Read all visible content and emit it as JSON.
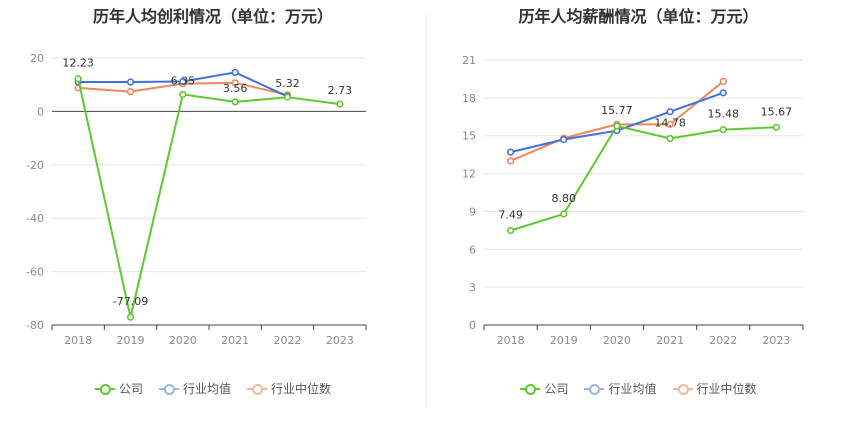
{
  "colors": {
    "company": "#5cc92f",
    "industry_avg": "#3f73d8",
    "industry_median": "#f0875a",
    "company_legend": "#5cc92f",
    "avg_legend": "#9bb5e8",
    "median_legend": "#f5b89a"
  },
  "legend": {
    "company": "公司",
    "industry_avg": "行业均值",
    "industry_median": "行业中位数"
  },
  "chart_data": [
    {
      "type": "line",
      "title": "历年人均创利情况（单位：万元）",
      "categories": [
        "2018",
        "2019",
        "2020",
        "2021",
        "2022",
        "2023"
      ],
      "ylim": [
        -80,
        20
      ],
      "yticks": [
        20,
        0,
        -20,
        -40,
        -60,
        -80
      ],
      "series": [
        {
          "name": "公司",
          "key": "company",
          "values": [
            12.23,
            -77.09,
            6.35,
            3.56,
            5.32,
            2.73
          ],
          "labels": [
            "12.23",
            "-77.09",
            "6.35",
            "3.56",
            "5.32",
            "2.73"
          ]
        },
        {
          "name": "行业均值",
          "key": "industry_avg",
          "values": [
            11.0,
            11.0,
            11.2,
            14.6,
            5.6,
            null
          ]
        },
        {
          "name": "行业中位数",
          "key": "industry_median",
          "values": [
            8.8,
            7.4,
            10.4,
            10.7,
            6.2,
            null
          ]
        }
      ]
    },
    {
      "type": "line",
      "title": "历年人均薪酬情况（单位：万元）",
      "categories": [
        "2018",
        "2019",
        "2020",
        "2021",
        "2022",
        "2023"
      ],
      "ylim": [
        0,
        21
      ],
      "yticks": [
        21,
        18,
        15,
        12,
        9,
        6,
        3,
        0
      ],
      "series": [
        {
          "name": "公司",
          "key": "company",
          "values": [
            7.49,
            8.8,
            15.77,
            14.78,
            15.48,
            15.67
          ],
          "labels": [
            "7.49",
            "8.80",
            "15.77",
            "14.78",
            "15.48",
            "15.67"
          ]
        },
        {
          "name": "行业均值",
          "key": "industry_avg",
          "values": [
            13.7,
            14.7,
            15.4,
            16.9,
            18.4,
            null
          ]
        },
        {
          "name": "行业中位数",
          "key": "industry_median",
          "values": [
            13.0,
            14.8,
            15.9,
            15.9,
            19.3,
            null
          ]
        }
      ]
    }
  ]
}
